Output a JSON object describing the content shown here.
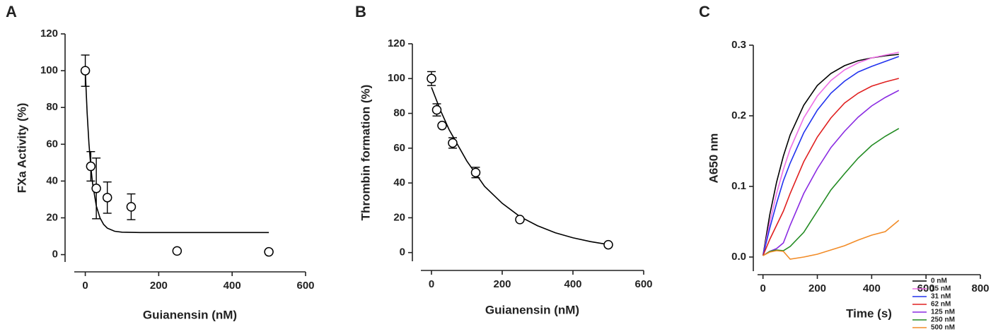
{
  "chart_data": [
    {
      "type": "scatter",
      "panel": "A",
      "x_label": "Guianensin (nM)",
      "y_label": "FXa Activity (%)",
      "x": [
        0,
        15,
        30,
        60,
        125,
        250,
        500
      ],
      "values": [
        100,
        48,
        36,
        31,
        26,
        2,
        1.5
      ],
      "errors": [
        8.5,
        8,
        16.5,
        8.5,
        7,
        null,
        null
      ],
      "fit_x": [
        0,
        5,
        10,
        15,
        20,
        30,
        40,
        50,
        60,
        80,
        100,
        150,
        200,
        300,
        400,
        500
      ],
      "fit_values": [
        100,
        77.2,
        60.3,
        47.8,
        38.5,
        26.5,
        20.0,
        16.4,
        14.4,
        12.7,
        12.2,
        12,
        12,
        12,
        12,
        12
      ],
      "xlim": [
        -30,
        600
      ],
      "ylim": [
        -4,
        120
      ],
      "xticks": [
        0,
        200,
        400,
        600
      ],
      "yticks": [
        0,
        20,
        40,
        60,
        80,
        100,
        120
      ],
      "color": "#000000"
    },
    {
      "type": "scatter",
      "panel": "B",
      "x_label": "Guianensin (nM)",
      "y_label": "Thrombin formation (%)",
      "x": [
        0,
        15,
        30,
        60,
        125,
        250,
        500
      ],
      "values": [
        100,
        82,
        73,
        63,
        46,
        19,
        4.5
      ],
      "errors": [
        4,
        3.5,
        null,
        3,
        3,
        null,
        null
      ],
      "fit_x": [
        0,
        25,
        50,
        100,
        150,
        200,
        250,
        300,
        350,
        400,
        450,
        500
      ],
      "fit_values": [
        95,
        81.9,
        70.6,
        52.6,
        38.1,
        28.3,
        20.7,
        15.4,
        11.4,
        8.5,
        6.3,
        4.6
      ],
      "xlim": [
        -30,
        600
      ],
      "ylim": [
        -5,
        120
      ],
      "xticks": [
        0,
        200,
        400,
        600
      ],
      "yticks": [
        0,
        20,
        40,
        60,
        80,
        100,
        120
      ],
      "color": "#000000"
    },
    {
      "type": "line",
      "panel": "C",
      "x_label": "Time (s)",
      "y_label": "A650 nm",
      "x": [
        0,
        25,
        50,
        75,
        100,
        150,
        200,
        250,
        300,
        350,
        400,
        450,
        500
      ],
      "series": [
        {
          "name": "0 nM",
          "color": "#000000",
          "values": [
            0.002,
            0.06,
            0.106,
            0.143,
            0.173,
            0.215,
            0.243,
            0.26,
            0.271,
            0.278,
            0.282,
            0.285,
            0.287
          ]
        },
        {
          "name": "15 nM",
          "color": "#ee6ee6",
          "values": [
            0.002,
            0.049,
            0.09,
            0.124,
            0.153,
            0.197,
            0.228,
            0.25,
            0.265,
            0.275,
            0.282,
            0.286,
            0.29
          ]
        },
        {
          "name": "31 nM",
          "color": "#2233ee",
          "values": [
            0.002,
            0.041,
            0.076,
            0.108,
            0.133,
            0.176,
            0.208,
            0.232,
            0.249,
            0.262,
            0.27,
            0.277,
            0.284
          ]
        },
        {
          "name": "62 nM",
          "color": "#e02020",
          "values": [
            0.002,
            0.025,
            0.045,
            0.065,
            0.09,
            0.135,
            0.17,
            0.197,
            0.218,
            0.232,
            0.242,
            0.248,
            0.253
          ]
        },
        {
          "name": "125 nM",
          "color": "#8a2be2",
          "values": [
            0.002,
            0.008,
            0.012,
            0.02,
            0.045,
            0.09,
            0.125,
            0.155,
            0.178,
            0.198,
            0.214,
            0.226,
            0.236
          ]
        },
        {
          "name": "250 nM",
          "color": "#228b22",
          "values": [
            0.002,
            0.008,
            0.01,
            0.009,
            0.015,
            0.035,
            0.065,
            0.095,
            0.118,
            0.14,
            0.158,
            0.171,
            0.182
          ]
        },
        {
          "name": "500 nM",
          "color": "#f28c28",
          "values": [
            0.002,
            0.007,
            0.009,
            0.008,
            -0.003,
            0.0,
            0.004,
            0.01,
            0.016,
            0.024,
            0.031,
            0.036,
            0.052
          ]
        }
      ],
      "xlim": [
        -20,
        800
      ],
      "ylim": [
        -0.02,
        0.3
      ],
      "xticks": [
        0,
        200,
        400,
        600,
        800
      ],
      "yticks": [
        {
          "value": 0,
          "label": "0.0"
        },
        0.1,
        0.2,
        0.3
      ],
      "legend": "lower right"
    }
  ]
}
